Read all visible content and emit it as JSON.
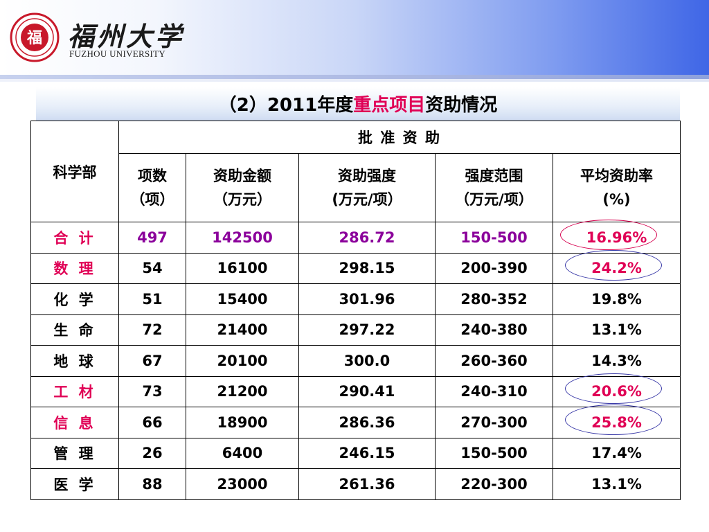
{
  "header": {
    "logo_text_cn": "福州大学",
    "logo_text_en": "FUZHOU UNIVERSITY",
    "seal_char": "福",
    "brand_red": "#c8182a"
  },
  "title": {
    "prefix": "（2）2011年度",
    "highlight": "重点项目",
    "suffix": "资助情况",
    "highlight_color": "#e00055"
  },
  "table": {
    "col_dept": "科学部",
    "group_header": "批 准 资 助",
    "columns": [
      {
        "line1": "项数",
        "line2": "（项）"
      },
      {
        "line1": "资助金额",
        "line2": "（万元）"
      },
      {
        "line1": "资助强度",
        "line2": "(万元/项）"
      },
      {
        "line1": "强度范围",
        "line2": "（万元/项）"
      },
      {
        "line1": "平均资助率",
        "line2": "(%)"
      }
    ],
    "rows": [
      {
        "dept": "合 计",
        "count": "497",
        "amount": "142500",
        "intensity": "286.72",
        "range": "150-500",
        "rate": "16.96%",
        "style": "total",
        "circled": "red"
      },
      {
        "dept": "数 理",
        "count": "54",
        "amount": "16100",
        "intensity": "298.15",
        "range": "200-390",
        "rate": "24.2%",
        "style": "highlight",
        "circled": "blue"
      },
      {
        "dept": "化 学",
        "count": "51",
        "amount": "15400",
        "intensity": "301.96",
        "range": "280-352",
        "rate": "19.8%",
        "style": "normal",
        "circled": ""
      },
      {
        "dept": "生 命",
        "count": "72",
        "amount": "21400",
        "intensity": "297.22",
        "range": "240-380",
        "rate": "13.1%",
        "style": "normal",
        "circled": ""
      },
      {
        "dept": "地 球",
        "count": "67",
        "amount": "20100",
        "intensity": "300.0",
        "range": "260-360",
        "rate": "14.3%",
        "style": "normal",
        "circled": ""
      },
      {
        "dept": "工 材",
        "count": "73",
        "amount": "21200",
        "intensity": "290.41",
        "range": "240-310",
        "rate": "20.6%",
        "style": "highlight",
        "circled": "blue"
      },
      {
        "dept": "信 息",
        "count": "66",
        "amount": "18900",
        "intensity": "286.36",
        "range": "270-300",
        "rate": "25.8%",
        "style": "highlight",
        "circled": "blue"
      },
      {
        "dept": "管 理",
        "count": "26",
        "amount": "6400",
        "intensity": "246.15",
        "range": "150-500",
        "rate": "17.4%",
        "style": "normal",
        "circled": ""
      },
      {
        "dept": "医 学",
        "count": "88",
        "amount": "23000",
        "intensity": "261.36",
        "range": "220-300",
        "rate": "13.1%",
        "style": "normal",
        "circled": ""
      }
    ]
  },
  "colors": {
    "highlight_red": "#e00055",
    "total_purple": "#8b009b",
    "ring_red": "#d6004e",
    "ring_blue": "#3a3aa8"
  }
}
